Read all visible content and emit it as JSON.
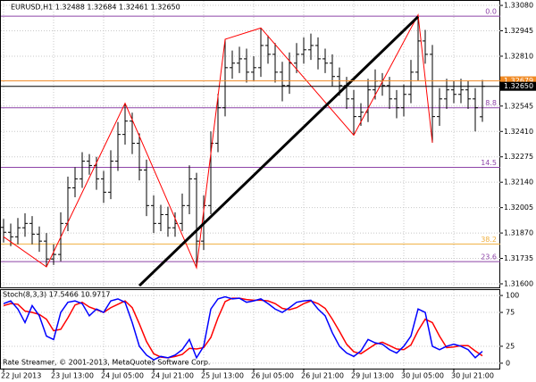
{
  "chart_data": [
    {
      "type": "ohlc",
      "title": "EURUSD,H1  1.32488 1.32684 1.32461 1.32650",
      "categories": [
        "22 Jul 2013",
        null,
        null,
        null,
        null,
        null,
        null,
        "23 Jul 13:00",
        null,
        null,
        null,
        null,
        null,
        null,
        "24 Jul 05:00",
        null,
        null,
        null,
        null,
        null,
        null,
        "24 Jul 21:00",
        null,
        null,
        null,
        null,
        null,
        null,
        "25 Jul 13:00",
        null,
        null,
        null,
        null,
        null,
        null,
        "26 Jul 05:00",
        null,
        null,
        null,
        null,
        null,
        null,
        "26 Jul 21:00",
        null,
        null,
        null,
        null,
        null,
        null,
        "29 Jul 13:00",
        null,
        null,
        null,
        null,
        null,
        null,
        "30 Jul 05:00",
        null,
        null,
        null,
        null,
        null,
        null,
        "30 Jul 21:00",
        null,
        null,
        null,
        null
      ],
      "open": [
        1.319,
        1.31874,
        1.3185,
        1.31898,
        1.31921,
        1.31864,
        1.31827,
        1.31732,
        1.31756,
        1.31921,
        1.3211,
        1.32158,
        1.32252,
        1.32229,
        1.32158,
        1.32087,
        1.32252,
        1.32394,
        1.32465,
        1.32347,
        1.32205,
        1.32016,
        1.31921,
        1.31968,
        1.31898,
        1.31921,
        1.32016,
        1.32158,
        1.31827,
        1.32016,
        1.32347,
        1.32536,
        1.32749,
        1.32773,
        1.32796,
        1.32725,
        1.32749,
        1.32867,
        1.3282,
        1.32725,
        1.32654,
        1.32773,
        1.3282,
        1.32844,
        1.32867,
        1.32796,
        1.32773,
        1.32702,
        1.32654,
        1.32583,
        1.32489,
        1.32512,
        1.32631,
        1.32678,
        1.32654,
        1.32583,
        1.32536,
        1.32607,
        1.32725,
        1.32891,
        1.3282,
        1.32489,
        1.32583,
        1.32631,
        1.32607,
        1.32631,
        1.32583,
        1.32488
      ],
      "high": [
        1.31945,
        1.3192,
        1.3195,
        1.31975,
        1.3196,
        1.31905,
        1.3187,
        1.3181,
        1.3198,
        1.3217,
        1.3222,
        1.323,
        1.3229,
        1.32275,
        1.322,
        1.3231,
        1.3246,
        1.3256,
        1.3251,
        1.324,
        1.3226,
        1.3207,
        1.3202,
        1.3201,
        1.3198,
        1.3208,
        1.3223,
        1.3219,
        1.3207,
        1.3241,
        1.3261,
        1.329,
        1.3284,
        1.3286,
        1.3285,
        1.3281,
        1.3296,
        1.3292,
        1.3288,
        1.3278,
        1.3283,
        1.3288,
        1.3291,
        1.3293,
        1.3291,
        1.3285,
        1.3282,
        1.3275,
        1.327,
        1.3263,
        1.3256,
        1.3269,
        1.3274,
        1.3272,
        1.327,
        1.3263,
        1.3266,
        1.3279,
        1.3303,
        1.3295,
        1.3287,
        1.3264,
        1.3269,
        1.3268,
        1.3269,
        1.3268,
        1.3264,
        1.32684
      ],
      "low": [
        1.3182,
        1.318,
        1.3181,
        1.3185,
        1.3181,
        1.3177,
        1.3169,
        1.317,
        1.3172,
        1.3188,
        1.3206,
        1.3211,
        1.3218,
        1.321,
        1.3203,
        1.3205,
        1.322,
        1.3234,
        1.3229,
        1.3215,
        1.3196,
        1.3187,
        1.3188,
        1.3185,
        1.3185,
        1.3188,
        1.3197,
        1.31685,
        1.3178,
        1.3197,
        1.323,
        1.3249,
        1.3269,
        1.3272,
        1.3267,
        1.3268,
        1.327,
        1.3277,
        1.3267,
        1.3257,
        1.3261,
        1.3272,
        1.3277,
        1.3279,
        1.3274,
        1.3272,
        1.3265,
        1.326,
        1.3253,
        1.3239,
        1.3244,
        1.3246,
        1.3258,
        1.326,
        1.3253,
        1.3248,
        1.3249,
        1.3256,
        1.3268,
        1.3277,
        1.3235,
        1.3244,
        1.3253,
        1.3256,
        1.3256,
        1.3253,
        1.3241,
        1.32461
      ],
      "close": [
        1.31874,
        1.3185,
        1.31898,
        1.31921,
        1.31864,
        1.31827,
        1.31732,
        1.31756,
        1.31921,
        1.3211,
        1.32158,
        1.32252,
        1.32229,
        1.32158,
        1.32087,
        1.32252,
        1.32394,
        1.32465,
        1.32347,
        1.32205,
        1.32016,
        1.31921,
        1.31968,
        1.31898,
        1.31921,
        1.32016,
        1.32158,
        1.31827,
        1.32016,
        1.32347,
        1.32536,
        1.32749,
        1.32773,
        1.32796,
        1.32725,
        1.32749,
        1.32867,
        1.3282,
        1.32725,
        1.32654,
        1.32773,
        1.3282,
        1.32844,
        1.32867,
        1.32796,
        1.32773,
        1.32702,
        1.32654,
        1.32583,
        1.32489,
        1.32512,
        1.32631,
        1.32678,
        1.32654,
        1.32583,
        1.32536,
        1.32607,
        1.32725,
        1.32891,
        1.3282,
        1.32489,
        1.32583,
        1.32631,
        1.32607,
        1.32631,
        1.32583,
        1.32536,
        1.3265
      ],
      "color": "#000000",
      "ylim": [
        1.31581,
        1.33104
      ],
      "yticks": [
        {
          "value": 1.3308,
          "label": "1.33080"
        },
        1.32945,
        {
          "value": 1.3281,
          "label": "1.32810"
        },
        1.32545,
        {
          "value": 1.3241,
          "label": "1.32410"
        },
        1.32275,
        {
          "value": 1.3214,
          "label": "1.32140"
        },
        1.32005,
        {
          "value": 1.3187,
          "label": "1.31870"
        },
        1.31735,
        {
          "value": 1.316,
          "label": "1.31600"
        }
      ],
      "grid": true,
      "price_lines": [
        {
          "value": 1.32679,
          "label": "1.32679",
          "color": "#f08a24"
        },
        {
          "value": 1.3265,
          "label": "1.32650",
          "color": "#000000"
        }
      ],
      "fibo": [
        {
          "value": 1.33023,
          "label": "0.0",
          "color": "#8e44a8"
        },
        {
          "value": 1.32536,
          "label": "8.8",
          "color": "#8e44a8"
        },
        {
          "value": 1.32219,
          "label": "14.5",
          "color": "#8e44a8"
        },
        {
          "value": 1.31812,
          "label": "38.2",
          "color": "#f0b040"
        },
        {
          "value": 1.31718,
          "label": "23.6",
          "color": "#8e44a8"
        }
      ],
      "zigzag": {
        "color": "#ff0000",
        "x": [
          0,
          6,
          17,
          27,
          31,
          36,
          49,
          58,
          60
        ],
        "values": [
          1.3185,
          1.3169,
          1.3256,
          1.31685,
          1.329,
          1.3296,
          1.3239,
          1.3303,
          1.3235
        ]
      },
      "trendline": {
        "color": "#000000",
        "x": [
          19,
          58
        ],
        "values": [
          1.3159,
          1.3302
        ]
      }
    },
    {
      "type": "line",
      "title": "Stoch(8,3,3) 17.5466 10.9717",
      "series": [
        {
          "color": "#0000ff",
          "values": [
            88,
            92,
            80,
            60,
            85,
            70,
            40,
            35,
            75,
            90,
            92,
            88,
            70,
            80,
            75,
            92,
            95,
            90,
            60,
            25,
            12,
            5,
            10,
            8,
            12,
            20,
            35,
            8,
            25,
            80,
            95,
            98,
            95,
            96,
            90,
            92,
            95,
            88,
            80,
            75,
            82,
            90,
            92,
            93,
            80,
            70,
            45,
            25,
            15,
            10,
            18,
            35,
            30,
            28,
            20,
            15,
            25,
            40,
            80,
            75,
            25,
            20,
            25,
            28,
            25,
            20,
            8,
            17.5466
          ]
        },
        {
          "color": "#ff0000",
          "values": [
            85,
            88,
            87,
            77,
            75,
            72,
            65,
            48,
            50,
            67,
            86,
            90,
            83,
            79,
            75,
            82,
            87,
            92,
            82,
            58,
            32,
            14,
            9,
            8,
            10,
            13,
            22,
            21,
            23,
            38,
            67,
            91,
            96,
            96,
            94,
            93,
            93,
            92,
            88,
            81,
            79,
            82,
            88,
            92,
            88,
            81,
            65,
            47,
            28,
            17,
            14,
            21,
            28,
            31,
            26,
            21,
            20,
            27,
            48,
            65,
            60,
            40,
            23,
            24,
            26,
            26,
            18,
            10.9717
          ]
        }
      ],
      "ylim": [
        -8,
        108
      ],
      "yticks": [
        0,
        25,
        75,
        100
      ],
      "annotation": "Rate Streamer, © 2001-2013, MetaQuotes Software Corp."
    }
  ]
}
